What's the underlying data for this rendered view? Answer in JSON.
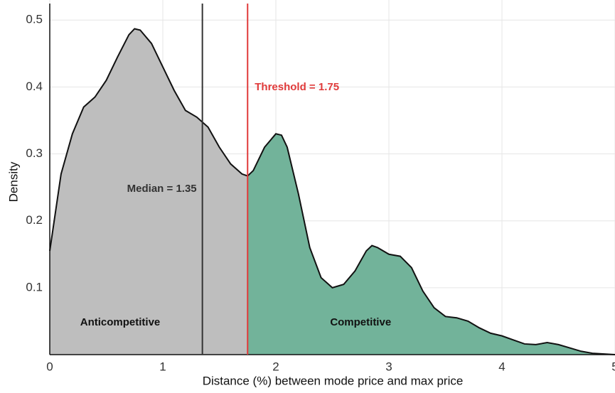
{
  "chart_data": {
    "type": "density",
    "x_label": "Distance (%) between mode price and max price",
    "y_label": "Density",
    "x": [
      0,
      0.1,
      0.2,
      0.3,
      0.4,
      0.5,
      0.6,
      0.7,
      0.75,
      0.8,
      0.9,
      1.0,
      1.1,
      1.2,
      1.3,
      1.4,
      1.5,
      1.6,
      1.7,
      1.75,
      1.8,
      1.9,
      2.0,
      2.05,
      2.1,
      2.2,
      2.3,
      2.4,
      2.5,
      2.6,
      2.7,
      2.8,
      2.85,
      2.9,
      3.0,
      3.1,
      3.2,
      3.3,
      3.4,
      3.5,
      3.6,
      3.7,
      3.8,
      3.9,
      4.0,
      4.1,
      4.2,
      4.3,
      4.4,
      4.5,
      4.6,
      4.7,
      4.8,
      5.0
    ],
    "values": [
      0.155,
      0.27,
      0.33,
      0.37,
      0.385,
      0.41,
      0.445,
      0.478,
      0.487,
      0.485,
      0.465,
      0.43,
      0.395,
      0.365,
      0.355,
      0.34,
      0.31,
      0.285,
      0.27,
      0.267,
      0.275,
      0.31,
      0.33,
      0.328,
      0.31,
      0.24,
      0.16,
      0.115,
      0.1,
      0.105,
      0.125,
      0.155,
      0.163,
      0.16,
      0.15,
      0.147,
      0.13,
      0.095,
      0.07,
      0.057,
      0.055,
      0.05,
      0.04,
      0.032,
      0.028,
      0.022,
      0.016,
      0.015,
      0.018,
      0.015,
      0.01,
      0.005,
      0.002,
      0
    ],
    "line_color": "#111111",
    "vlines": [
      {
        "value": 1.35,
        "label": "Median = 1.35",
        "color": "#333333"
      },
      {
        "value": 1.75,
        "label": "Threshold = 1.75",
        "color": "#e03a3a"
      }
    ],
    "regions": [
      {
        "label": "Anticompetitive",
        "color": "#bebebe"
      },
      {
        "label": "Competitive",
        "color": "#72b39a"
      }
    ],
    "xlim": [
      0,
      5
    ],
    "xticks": [
      0,
      1,
      2,
      3,
      4,
      5
    ],
    "ylim": [
      0,
      0.53
    ],
    "yticks": [
      0.1,
      0.2,
      0.3,
      0.4,
      0.5
    ],
    "grid": true
  }
}
